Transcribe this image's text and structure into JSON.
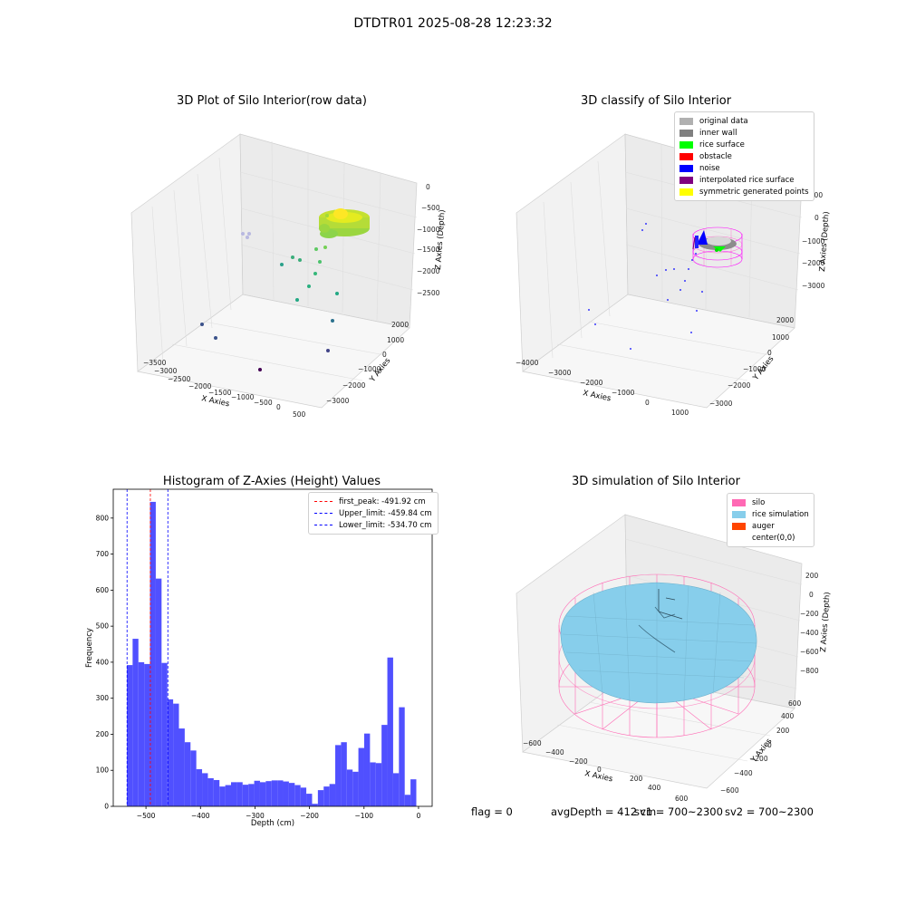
{
  "suptitle": "DTDTR01 2025-08-28 12:23:32",
  "colors": {
    "hist_bar": "#5050ff",
    "peak_line": "#ff0000",
    "limit_line": "#0000ff",
    "silo": "#ff69b4",
    "rice_sim": "#87ceeb",
    "auger": "#ff4500",
    "scatter_cmap": [
      "#440154",
      "#3b528b",
      "#21918c",
      "#5ec962",
      "#fde725"
    ]
  },
  "chart_data": [
    {
      "type": "scatter",
      "dimension": "3d",
      "title": "3D Plot of Silo Interior(row data)",
      "xlabel": "X Axies",
      "ylabel": "Y Axies",
      "zlabel": "Z Axies (Depth)",
      "xticks": [
        "−3500",
        "−3000",
        "−2500",
        "−2000",
        "−1500",
        "−1000",
        "−500",
        "0",
        "500"
      ],
      "yticks": [
        "−3000",
        "−2000",
        "−1000",
        "0",
        "1000",
        "2000"
      ],
      "zticks": [
        "0",
        "−500",
        "−1000",
        "−1500",
        "−2000",
        "−2500"
      ],
      "colormap": "viridis (by depth)",
      "grid": true
    },
    {
      "type": "scatter",
      "dimension": "3d",
      "title": "3D classify of Silo Interior",
      "xlabel": "X Axies",
      "ylabel": "Y Axies",
      "zlabel": "Z Axies (Depth)",
      "xticks": [
        "−4000",
        "−3000",
        "−2000",
        "−1000",
        "0",
        "1000"
      ],
      "yticks": [
        "−3000",
        "−2000",
        "−1000",
        "0",
        "1000",
        "2000"
      ],
      "zticks": [
        "1000",
        "0",
        "−1000",
        "−2000",
        "−3000"
      ],
      "legend": [
        {
          "label": "original data",
          "color": "#b0b0b0"
        },
        {
          "label": "inner wall",
          "color": "#808080"
        },
        {
          "label": "rice surface",
          "color": "#00ff00"
        },
        {
          "label": "obstacle",
          "color": "#ff0000"
        },
        {
          "label": "noise",
          "color": "#0000ff"
        },
        {
          "label": "interpolated rice surface",
          "color": "#800080"
        },
        {
          "label": "symmetric generated points",
          "color": "#ffff00"
        }
      ],
      "legend_loc": "upper right",
      "grid": true
    },
    {
      "type": "bar",
      "title": "Histogram of Z-Axies (Height) Values",
      "xlabel": "Depth (cm)",
      "ylabel": "Frequency",
      "xlim": [
        -560,
        25
      ],
      "ylim": [
        0,
        880
      ],
      "xticks": [
        "−500",
        "−400",
        "−300",
        "−200",
        "−100",
        "0"
      ],
      "xtick_values": [
        -500,
        -400,
        -300,
        -200,
        -100,
        0
      ],
      "yticks": [
        "0",
        "100",
        "200",
        "300",
        "400",
        "500",
        "600",
        "700",
        "800"
      ],
      "ytick_values": [
        0,
        100,
        200,
        300,
        400,
        500,
        600,
        700,
        800
      ],
      "bin_start": -535.1,
      "bin_width": 10.62,
      "values": [
        392,
        465,
        400,
        395,
        845,
        632,
        398,
        297,
        285,
        216,
        178,
        155,
        103,
        92,
        78,
        73,
        55,
        59,
        67,
        67,
        60,
        62,
        71,
        67,
        70,
        72,
        72,
        69,
        65,
        59,
        52,
        35,
        7,
        45,
        55,
        62,
        170,
        178,
        102,
        96,
        162,
        202,
        122,
        120,
        226,
        413,
        92,
        275,
        32,
        75
      ],
      "vlines": [
        {
          "label": "first_peak: -491.92 cm",
          "x": -491.92,
          "style": "dashed",
          "color": "#ff0000"
        },
        {
          "label": "Upper_limit: -459.84 cm",
          "x": -459.84,
          "style": "dashed",
          "color": "#0000ff"
        },
        {
          "label": "Lower_limit: -534.70 cm",
          "x": -534.7,
          "style": "dashed",
          "color": "#0000ff"
        }
      ],
      "legend_loc": "upper right"
    },
    {
      "type": "surface",
      "dimension": "3d",
      "title": "3D simulation of Silo Interior",
      "xlabel": "X Axies",
      "ylabel": "Y Axies",
      "zlabel": "Z Axies (Depth)",
      "xticks": [
        "−600",
        "−400",
        "−200",
        "0",
        "200",
        "400",
        "600"
      ],
      "yticks": [
        "−600",
        "−400",
        "−200",
        "0",
        "200",
        "400",
        "600"
      ],
      "zticks": [
        "200",
        "0",
        "−200",
        "−400",
        "−600",
        "−800"
      ],
      "legend": [
        {
          "label": "silo",
          "color": "#ff69b4"
        },
        {
          "label": "rice simulation",
          "color": "#87ceeb"
        },
        {
          "label": "auger",
          "color": "#ff4500"
        },
        {
          "label": "center(0,0)",
          "color": ""
        }
      ],
      "legend_loc": "upper right",
      "grid": true
    }
  ],
  "footer": {
    "flag": "flag = 0",
    "avg": "avgDepth = 412 cm",
    "sv1": "sv1 = 700~2300",
    "sv2": "sv2 = 700~2300"
  }
}
